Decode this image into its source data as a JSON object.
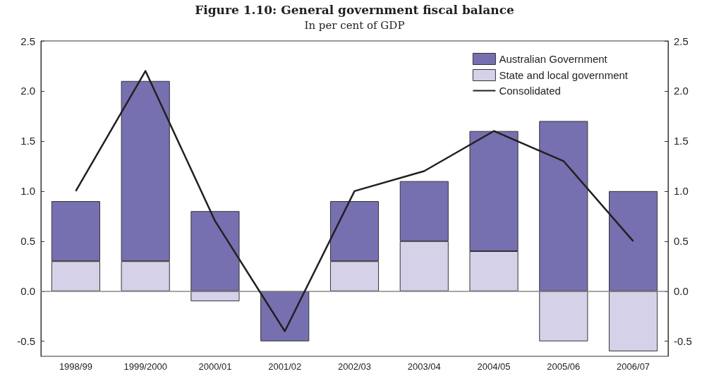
{
  "chart_data": {
    "type": "bar",
    "title": "Figure 1.10: General government fiscal balance",
    "subtitle": "In per cent of GDP",
    "categories": [
      "1998/99",
      "1999/2000",
      "2000/01",
      "2001/02",
      "2002/03",
      "2003/04",
      "2004/05",
      "2005/06",
      "2006/07"
    ],
    "stacked": true,
    "series": [
      {
        "name": "State and local government",
        "color": "#d5d1e8",
        "values": [
          0.3,
          0.3,
          -0.1,
          0,
          0.3,
          0.5,
          0.4,
          -0.5,
          -0.6
        ]
      },
      {
        "name": "Australian Government",
        "color": "#7670b0",
        "values": [
          0.6,
          1.8,
          0.8,
          -0.5,
          0.6,
          0.6,
          1.2,
          1.7,
          1.0
        ]
      },
      {
        "name": "Consolidated",
        "type": "line",
        "color": "#231f20",
        "values": [
          1.0,
          2.2,
          0.7,
          -0.4,
          1.0,
          1.2,
          1.6,
          1.3,
          0.5
        ]
      }
    ],
    "ylim": [
      -0.65,
      2.5
    ],
    "yticks": [
      {
        "value": -0.5,
        "label": "-0.5"
      },
      {
        "value": 0,
        "label": "0.0"
      },
      {
        "value": 0.5,
        "label": "0.5"
      },
      {
        "value": 1,
        "label": "1.0"
      },
      {
        "value": 1.5,
        "label": "1.5"
      },
      {
        "value": 2,
        "label": "2.0"
      },
      {
        "value": 2.5,
        "label": "2.5"
      }
    ],
    "y2lim": [
      -0.65,
      2.5
    ],
    "y2ticks": [
      {
        "value": -0.5,
        "label": "-0.5"
      },
      {
        "value": 0,
        "label": "0.0"
      },
      {
        "value": 0.5,
        "label": "0.5"
      },
      {
        "value": 1,
        "label": "1.0"
      },
      {
        "value": 1.5,
        "label": "1.5"
      },
      {
        "value": 2,
        "label": "2.0"
      },
      {
        "value": 2.5,
        "label": "2.5"
      }
    ],
    "ref_lines": [
      {
        "axis": "y",
        "value": 0,
        "color": "#888888"
      }
    ],
    "legend": "top right",
    "marker": "none",
    "grid": false
  }
}
